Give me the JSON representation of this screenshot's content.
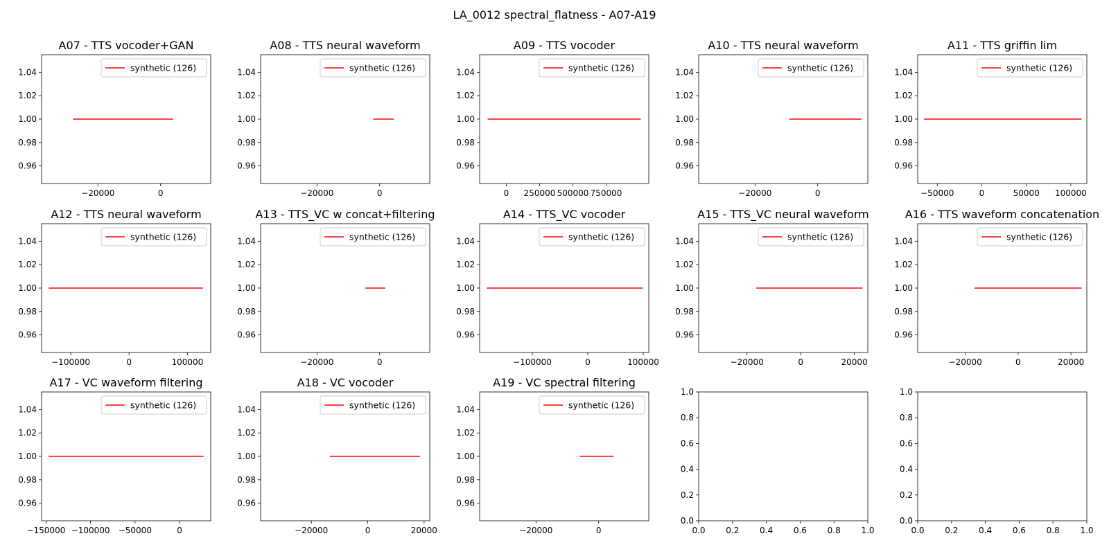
{
  "title": "LA_0012 spectral_flatness - A07-A19",
  "colors": {
    "line": "#ff0000",
    "axis": "#000000",
    "legend_border": "#cccccc"
  },
  "chart_data": [
    {
      "type": "line",
      "title": "A07 - TTS vocoder+GAN",
      "xlim": [
        -38000,
        16000
      ],
      "xticks": [
        -20000,
        0
      ],
      "xticklabels": [
        "−20000",
        "0"
      ],
      "ylim": [
        0.945,
        1.055
      ],
      "yticks": [
        0.96,
        0.98,
        1.0,
        1.02,
        1.04
      ],
      "yticklabels": [
        "0.96",
        "0.98",
        "1.00",
        "1.02",
        "1.04"
      ],
      "series": [
        {
          "name": "synthetic (126)",
          "x": [
            -28000,
            4000
          ],
          "y": [
            1.0,
            1.0
          ]
        }
      ],
      "legend": "upper right",
      "grid": false
    },
    {
      "type": "line",
      "title": "A08 - TTS neural waveform",
      "xlim": [
        -38000,
        16000
      ],
      "xticks": [
        -20000,
        0
      ],
      "xticklabels": [
        "−20000",
        "0"
      ],
      "ylim": [
        0.945,
        1.055
      ],
      "yticks": [
        0.96,
        0.98,
        1.0,
        1.02,
        1.04
      ],
      "yticklabels": [
        "0.96",
        "0.98",
        "1.00",
        "1.02",
        "1.04"
      ],
      "series": [
        {
          "name": "synthetic (126)",
          "x": [
            -2000,
            4500
          ],
          "y": [
            1.0,
            1.0
          ]
        }
      ],
      "legend": "upper right",
      "grid": false
    },
    {
      "type": "line",
      "title": "A09 - TTS vocoder",
      "xlim": [
        -200000,
        1070000
      ],
      "xticks": [
        0,
        250000,
        500000,
        750000
      ],
      "xticklabels": [
        "0",
        "250000",
        "500000",
        "750000"
      ],
      "ylim": [
        0.945,
        1.055
      ],
      "yticks": [
        0.96,
        0.98,
        1.0,
        1.02,
        1.04
      ],
      "yticklabels": [
        "0.96",
        "0.98",
        "1.00",
        "1.02",
        "1.04"
      ],
      "series": [
        {
          "name": "synthetic (126)",
          "x": [
            -140000,
            1010000
          ],
          "y": [
            1.0,
            1.0
          ]
        }
      ],
      "legend": "upper right",
      "grid": false
    },
    {
      "type": "line",
      "title": "A10 - TTS neural waveform",
      "xlim": [
        -38000,
        16000
      ],
      "xticks": [
        -20000,
        0
      ],
      "xticklabels": [
        "−20000",
        "0"
      ],
      "ylim": [
        0.945,
        1.055
      ],
      "yticks": [
        0.96,
        0.98,
        1.0,
        1.02,
        1.04
      ],
      "yticklabels": [
        "0.96",
        "0.98",
        "1.00",
        "1.02",
        "1.04"
      ],
      "series": [
        {
          "name": "synthetic (126)",
          "x": [
            -9000,
            14000
          ],
          "y": [
            1.0,
            1.0
          ]
        }
      ],
      "legend": "upper right",
      "grid": false
    },
    {
      "type": "line",
      "title": "A11 - TTS griffin lim",
      "xlim": [
        -72000,
        118000
      ],
      "xticks": [
        -50000,
        0,
        50000,
        100000
      ],
      "xticklabels": [
        "−50000",
        "0",
        "50000",
        "100000"
      ],
      "ylim": [
        0.945,
        1.055
      ],
      "yticks": [
        0.96,
        0.98,
        1.0,
        1.02,
        1.04
      ],
      "yticklabels": [
        "0.96",
        "0.98",
        "1.00",
        "1.02",
        "1.04"
      ],
      "series": [
        {
          "name": "synthetic (126)",
          "x": [
            -65000,
            112000
          ],
          "y": [
            1.0,
            1.0
          ]
        }
      ],
      "legend": "upper right",
      "grid": false
    },
    {
      "type": "line",
      "title": "A12 - TTS neural waveform",
      "xlim": [
        -150000,
        140000
      ],
      "xticks": [
        -100000,
        0,
        100000
      ],
      "xticklabels": [
        "−100000",
        "0",
        "100000"
      ],
      "ylim": [
        0.945,
        1.055
      ],
      "yticks": [
        0.96,
        0.98,
        1.0,
        1.02,
        1.04
      ],
      "yticklabels": [
        "0.96",
        "0.98",
        "1.00",
        "1.02",
        "1.04"
      ],
      "series": [
        {
          "name": "synthetic (126)",
          "x": [
            -138000,
            127000
          ],
          "y": [
            1.0,
            1.0
          ]
        }
      ],
      "legend": "upper right",
      "grid": false
    },
    {
      "type": "line",
      "title": "A13 - TTS_VC w concat+filtering",
      "xlim": [
        -38000,
        16000
      ],
      "xticks": [
        -20000,
        0
      ],
      "xticklabels": [
        "−20000",
        "0"
      ],
      "ylim": [
        0.945,
        1.055
      ],
      "yticks": [
        0.96,
        0.98,
        1.0,
        1.02,
        1.04
      ],
      "yticklabels": [
        "0.96",
        "0.98",
        "1.00",
        "1.02",
        "1.04"
      ],
      "series": [
        {
          "name": "synthetic (126)",
          "x": [
            -4500,
            1800
          ],
          "y": [
            1.0,
            1.0
          ]
        }
      ],
      "legend": "upper right",
      "grid": false
    },
    {
      "type": "line",
      "title": "A14 - TTS_VC vocoder",
      "xlim": [
        -195000,
        110000
      ],
      "xticks": [
        -100000,
        0,
        100000
      ],
      "xticklabels": [
        "−100000",
        "0",
        "100000"
      ],
      "ylim": [
        0.945,
        1.055
      ],
      "yticks": [
        0.96,
        0.98,
        1.0,
        1.02,
        1.04
      ],
      "yticklabels": [
        "0.96",
        "0.98",
        "1.00",
        "1.02",
        "1.04"
      ],
      "series": [
        {
          "name": "synthetic (126)",
          "x": [
            -182000,
            99000
          ],
          "y": [
            1.0,
            1.0
          ]
        }
      ],
      "legend": "upper right",
      "grid": false
    },
    {
      "type": "line",
      "title": "A15 - TTS_VC neural waveform",
      "xlim": [
        -38000,
        25000
      ],
      "xticks": [
        -20000,
        0,
        20000
      ],
      "xticklabels": [
        "−20000",
        "0",
        "20000"
      ],
      "ylim": [
        0.945,
        1.055
      ],
      "yticks": [
        0.96,
        0.98,
        1.0,
        1.02,
        1.04
      ],
      "yticklabels": [
        "0.96",
        "0.98",
        "1.00",
        "1.02",
        "1.04"
      ],
      "series": [
        {
          "name": "synthetic (126)",
          "x": [
            -16500,
            23000
          ],
          "y": [
            1.0,
            1.0
          ]
        }
      ],
      "legend": "upper right",
      "grid": false
    },
    {
      "type": "line",
      "title": "A16 - TTS waveform concatenation",
      "xlim": [
        -38000,
        26000
      ],
      "xticks": [
        -20000,
        0,
        20000
      ],
      "xticklabels": [
        "−20000",
        "0",
        "20000"
      ],
      "ylim": [
        0.945,
        1.055
      ],
      "yticks": [
        0.96,
        0.98,
        1.0,
        1.02,
        1.04
      ],
      "yticklabels": [
        "0.96",
        "0.98",
        "1.00",
        "1.02",
        "1.04"
      ],
      "series": [
        {
          "name": "synthetic (126)",
          "x": [
            -16500,
            24000
          ],
          "y": [
            1.0,
            1.0
          ]
        }
      ],
      "legend": "upper right",
      "grid": false
    },
    {
      "type": "line",
      "title": "A17 - VC waveform filtering",
      "xlim": [
        -155000,
        35000
      ],
      "xticks": [
        -150000,
        -100000,
        -50000,
        0
      ],
      "xticklabels": [
        "−150000",
        "−100000",
        "−50000",
        "0"
      ],
      "ylim": [
        0.945,
        1.055
      ],
      "yticks": [
        0.96,
        0.98,
        1.0,
        1.02,
        1.04
      ],
      "yticklabels": [
        "0.96",
        "0.98",
        "1.00",
        "1.02",
        "1.04"
      ],
      "series": [
        {
          "name": "synthetic (126)",
          "x": [
            -147000,
            27000
          ],
          "y": [
            1.0,
            1.0
          ]
        }
      ],
      "legend": "upper right",
      "grid": false
    },
    {
      "type": "line",
      "title": "A18 - VC vocoder",
      "xlim": [
        -38000,
        22000
      ],
      "xticks": [
        -20000,
        0,
        20000
      ],
      "xticklabels": [
        "−20000",
        "0",
        "20000"
      ],
      "ylim": [
        0.945,
        1.055
      ],
      "yticks": [
        0.96,
        0.98,
        1.0,
        1.02,
        1.04
      ],
      "yticklabels": [
        "0.96",
        "0.98",
        "1.00",
        "1.02",
        "1.04"
      ],
      "series": [
        {
          "name": "synthetic (126)",
          "x": [
            -13500,
            18500
          ],
          "y": [
            1.0,
            1.0
          ]
        }
      ],
      "legend": "upper right",
      "grid": false
    },
    {
      "type": "line",
      "title": "A19 - VC spectral filtering",
      "xlim": [
        -38000,
        16000
      ],
      "xticks": [
        -20000,
        0
      ],
      "xticklabels": [
        "−20000",
        "0"
      ],
      "ylim": [
        0.945,
        1.055
      ],
      "yticks": [
        0.96,
        0.98,
        1.0,
        1.02,
        1.04
      ],
      "yticklabels": [
        "0.96",
        "0.98",
        "1.00",
        "1.02",
        "1.04"
      ],
      "series": [
        {
          "name": "synthetic (126)",
          "x": [
            -6000,
            4800
          ],
          "y": [
            1.0,
            1.0
          ]
        }
      ],
      "legend": "upper right",
      "grid": false
    },
    {
      "type": "line",
      "title": "",
      "xlim": [
        0,
        1
      ],
      "xticks": [
        0,
        0.2,
        0.4,
        0.6,
        0.8,
        1.0
      ],
      "xticklabels": [
        "0.0",
        "0.2",
        "0.4",
        "0.6",
        "0.8",
        "1.0"
      ],
      "ylim": [
        0,
        1
      ],
      "yticks": [
        0,
        0.2,
        0.4,
        0.6,
        0.8,
        1.0
      ],
      "yticklabels": [
        "0.0",
        "0.2",
        "0.4",
        "0.6",
        "0.8",
        "1.0"
      ],
      "series": [],
      "grid": false
    },
    {
      "type": "line",
      "title": "",
      "xlim": [
        0,
        1
      ],
      "xticks": [
        0,
        0.2,
        0.4,
        0.6,
        0.8,
        1.0
      ],
      "xticklabels": [
        "0.0",
        "0.2",
        "0.4",
        "0.6",
        "0.8",
        "1.0"
      ],
      "ylim": [
        0,
        1
      ],
      "yticks": [
        0,
        0.2,
        0.4,
        0.6,
        0.8,
        1.0
      ],
      "yticklabels": [
        "0.0",
        "0.2",
        "0.4",
        "0.6",
        "0.8",
        "1.0"
      ],
      "series": [],
      "grid": false
    }
  ]
}
